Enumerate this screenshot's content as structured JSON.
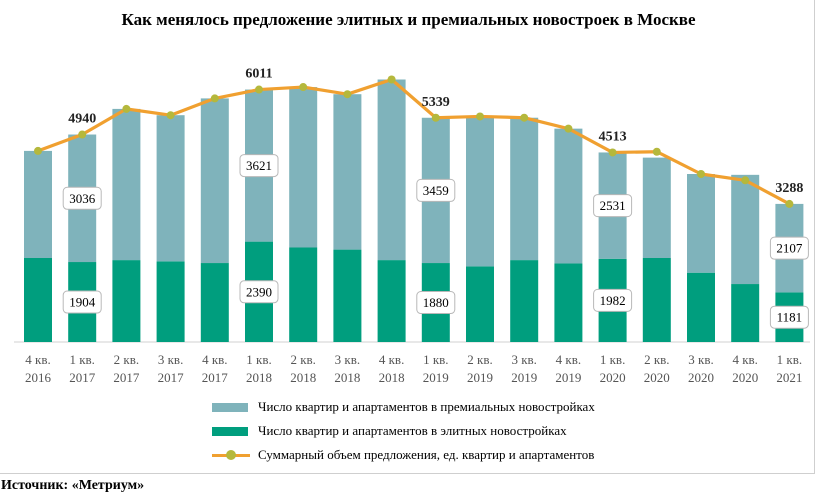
{
  "title": "Как менялось предложение элитных и премиальных новостроек  в Москве",
  "source": "Источник: «Метриум»",
  "colors": {
    "premium": "#7fb3bb",
    "elite": "#009e7e",
    "total_line": "#f0a030",
    "total_marker": "#b5b83c"
  },
  "legend": {
    "premium": "Число квартир и апартаментов в премиальных новостройках",
    "elite": "Число квартир и апартаментов в элитных новостройках",
    "total": "Суммарный объем предложения, ед. квартир и апартаментов"
  },
  "chart_data": {
    "type": "bar",
    "stacked": true,
    "title": "Как менялось предложение элитных и премиальных новостроек  в Москве",
    "categories": [
      [
        "4 кв.",
        "2016"
      ],
      [
        "1 кв.",
        "2017"
      ],
      [
        "2 кв.",
        "2017"
      ],
      [
        "3 кв.",
        "2017"
      ],
      [
        "4 кв.",
        "2017"
      ],
      [
        "1 кв.",
        "2018"
      ],
      [
        "2 кв.",
        "2018"
      ],
      [
        "3 кв.",
        "2018"
      ],
      [
        "4 кв.",
        "2018"
      ],
      [
        "1 кв.",
        "2019"
      ],
      [
        "2 кв.",
        "2019"
      ],
      [
        "3 кв.",
        "2019"
      ],
      [
        "4 кв.",
        "2019"
      ],
      [
        "1 кв.",
        "2020"
      ],
      [
        "2 кв.",
        "2020"
      ],
      [
        "3 кв.",
        "2020"
      ],
      [
        "4 кв.",
        "2020"
      ],
      [
        "1 кв.",
        "2021"
      ]
    ],
    "series": [
      {
        "name": "Число квартир и апартаментов в элитных новостройках",
        "values": [
          2000,
          1904,
          1950,
          1920,
          1880,
          2390,
          2250,
          2200,
          1950,
          1880,
          1800,
          1950,
          1870,
          1982,
          2000,
          1650,
          1380,
          1181
        ]
      },
      {
        "name": "Число квартир и апартаментов в премиальных новостройках",
        "values": [
          2550,
          3036,
          3600,
          3480,
          3920,
          3621,
          3820,
          3700,
          4300,
          3459,
          3570,
          3390,
          3210,
          2531,
          2390,
          2350,
          2600,
          2107
        ]
      },
      {
        "name": "Суммарный объем предложения, ед. квартир и апартаментов",
        "type": "line",
        "values": [
          4550,
          4940,
          5550,
          5400,
          5800,
          6011,
          6070,
          5900,
          6250,
          5339,
          5370,
          5340,
          5080,
          4513,
          4530,
          4000,
          3850,
          3288
        ]
      }
    ],
    "value_labels": {
      "elite": {
        "1": "1904",
        "5": "2390",
        "9": "1880",
        "13": "1982",
        "17": "1181"
      },
      "premium": {
        "1": "3036",
        "5": "3621",
        "9": "3459",
        "13": "2531",
        "17": "2107"
      },
      "total": {
        "1": "4940",
        "5": "6011",
        "9": "5339",
        "13": "4513",
        "17": "3288"
      }
    },
    "ylim": [
      0,
      7000
    ],
    "grid": false,
    "legend_position": "bottom"
  }
}
